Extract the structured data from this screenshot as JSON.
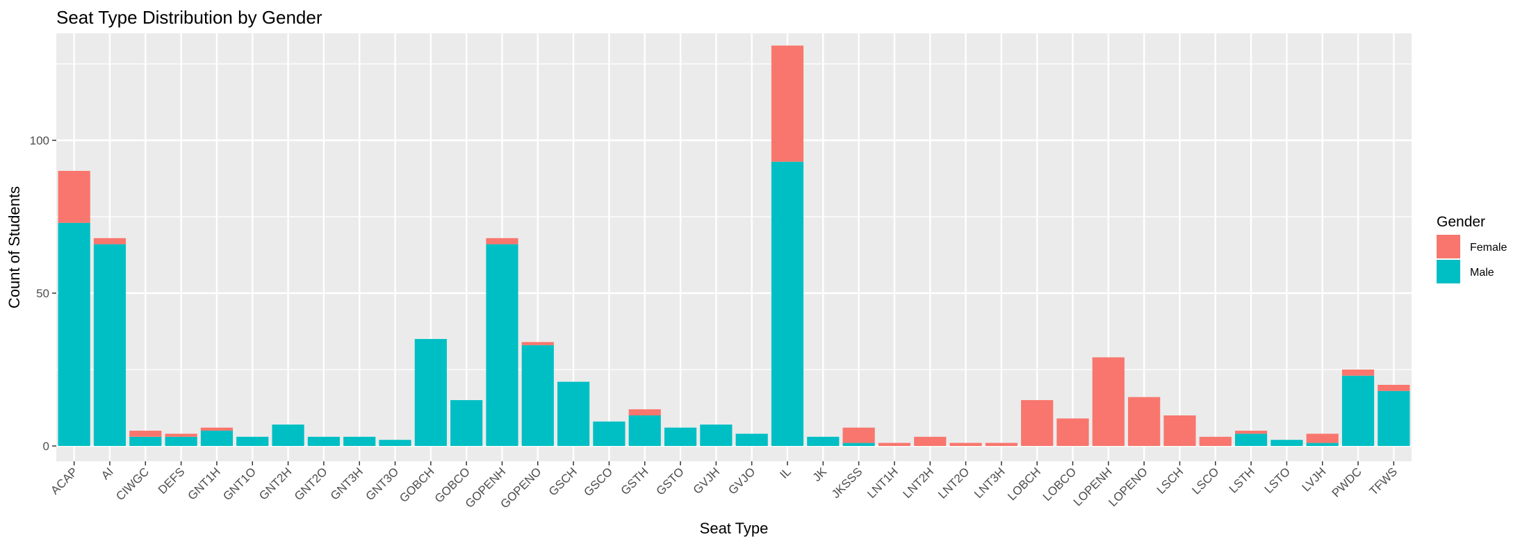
{
  "chart_data": {
    "type": "bar",
    "stacked": true,
    "title": "Seat Type Distribution by Gender",
    "xlabel": "Seat Type",
    "ylabel": "Count of Students",
    "ylim": [
      -5,
      135
    ],
    "yticks": [
      0,
      50,
      100
    ],
    "grid": true,
    "legend": {
      "title": "Gender",
      "position": "right",
      "entries": [
        "Female",
        "Male"
      ]
    },
    "colors": {
      "Female": "#F8766D",
      "Male": "#00BFC4",
      "panel": "#EBEBEB",
      "grid": "#FFFFFF"
    },
    "categories": [
      "ACAP",
      "AI",
      "CIWGC",
      "DEFS",
      "GNT1H",
      "GNT1O",
      "GNT2H",
      "GNT2O",
      "GNT3H",
      "GNT3O",
      "GOBCH",
      "GOBCO",
      "GOPENH",
      "GOPENO",
      "GSCH",
      "GSCO",
      "GSTH",
      "GSTO",
      "GVJH",
      "GVJO",
      "IL",
      "JK",
      "JKSSS",
      "LNT1H",
      "LNT2H",
      "LNT2O",
      "LNT3H",
      "LOBCH",
      "LOBCO",
      "LOPENH",
      "LOPENO",
      "LSCH",
      "LSCO",
      "LSTH",
      "LSTO",
      "LVJH",
      "PWDC",
      "TFWS"
    ],
    "series": [
      {
        "name": "Male",
        "values": [
          73,
          66,
          3,
          3,
          5,
          3,
          7,
          3,
          3,
          2,
          35,
          15,
          66,
          33,
          21,
          8,
          10,
          6,
          7,
          4,
          93,
          3,
          1,
          0,
          0,
          0,
          0,
          0,
          0,
          0,
          0,
          0,
          0,
          4,
          2,
          1,
          23,
          18
        ]
      },
      {
        "name": "Female",
        "values": [
          17,
          2,
          2,
          1,
          1,
          0,
          0,
          0,
          0,
          0,
          0,
          0,
          2,
          1,
          0,
          0,
          2,
          0,
          0,
          0,
          38,
          0,
          5,
          1,
          3,
          1,
          1,
          15,
          9,
          29,
          16,
          10,
          3,
          1,
          0,
          3,
          2,
          2
        ]
      }
    ]
  }
}
